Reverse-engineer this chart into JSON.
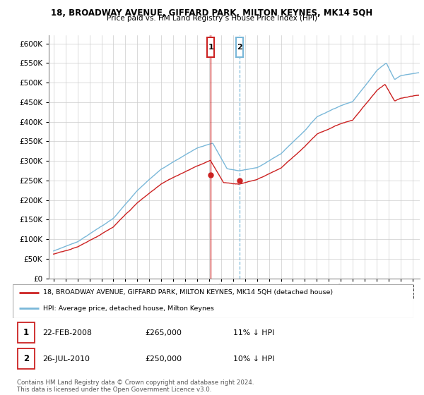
{
  "title": "18, BROADWAY AVENUE, GIFFARD PARK, MILTON KEYNES, MK14 5QH",
  "subtitle": "Price paid vs. HM Land Registry’s House Price Index (HPI)",
  "legend_line1": "18, BROADWAY AVENUE, GIFFARD PARK, MILTON KEYNES, MK14 5QH (detached house)",
  "legend_line2": "HPI: Average price, detached house, Milton Keynes",
  "sale1_date": "22-FEB-2008",
  "sale1_price": "£265,000",
  "sale1_hpi": "11% ↓ HPI",
  "sale2_date": "26-JUL-2010",
  "sale2_price": "£250,000",
  "sale2_hpi": "10% ↓ HPI",
  "footer": "Contains HM Land Registry data © Crown copyright and database right 2024.\nThis data is licensed under the Open Government Licence v3.0.",
  "hpi_color": "#7ab8d9",
  "sale_color": "#cc2222",
  "marker1_x": 2008.13,
  "marker2_x": 2010.55,
  "sale1_price_val": 265000,
  "sale2_price_val": 250000,
  "ylim_min": 0,
  "ylim_max": 620000,
  "ytick_step": 50000,
  "xstart": 1995,
  "xend": 2025
}
